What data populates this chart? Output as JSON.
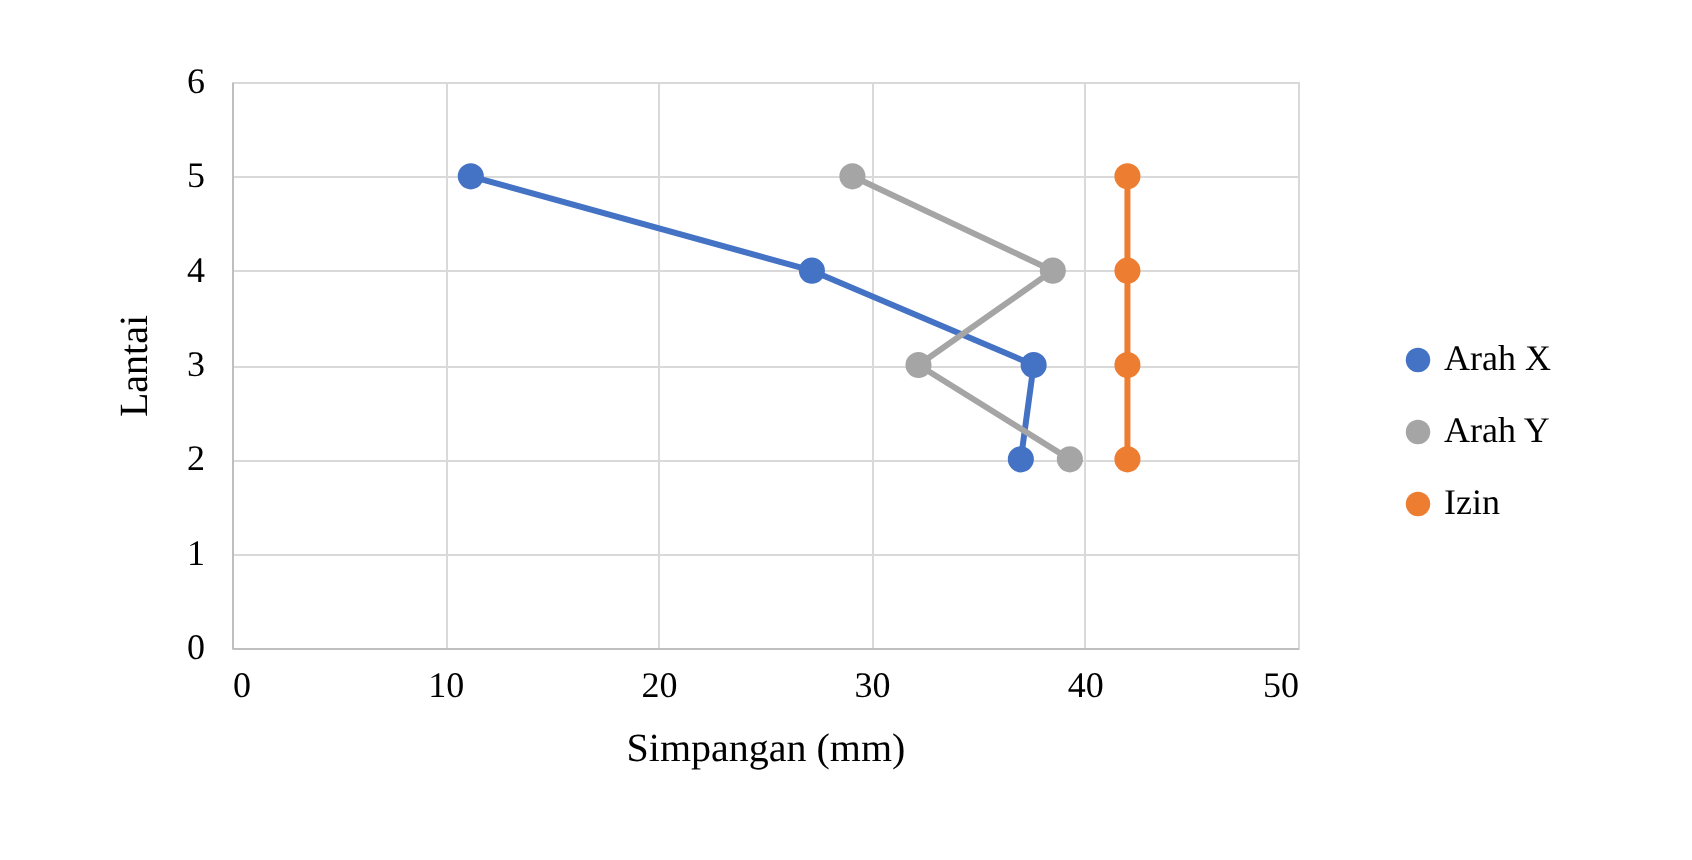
{
  "chart_data": {
    "type": "line",
    "xlabel": "Simpangan (mm)",
    "ylabel": "Lantai",
    "series": [
      {
        "name": "Arah X",
        "color": "#4472c4",
        "x": [
          11.2,
          27.2,
          37.6,
          37.0
        ],
        "values": [
          5,
          4,
          3,
          2
        ]
      },
      {
        "name": "Arah Y",
        "color": "#a5a5a5",
        "x": [
          29.1,
          38.5,
          32.2,
          39.3
        ],
        "values": [
          5,
          4,
          3,
          2
        ]
      },
      {
        "name": "Izin",
        "color": "#ed7d31",
        "x": [
          42.0,
          42.0,
          42.0,
          42.0
        ],
        "values": [
          5,
          4,
          3,
          2
        ]
      }
    ],
    "xlim": [
      0,
      50
    ],
    "xticks": [
      0,
      10,
      20,
      30,
      40,
      50
    ],
    "ylim": [
      0,
      6
    ],
    "yticks": [
      0,
      1,
      2,
      3,
      4,
      5,
      6
    ],
    "grid": true,
    "legend": "right",
    "marker": "circle",
    "line_style": "solid"
  }
}
